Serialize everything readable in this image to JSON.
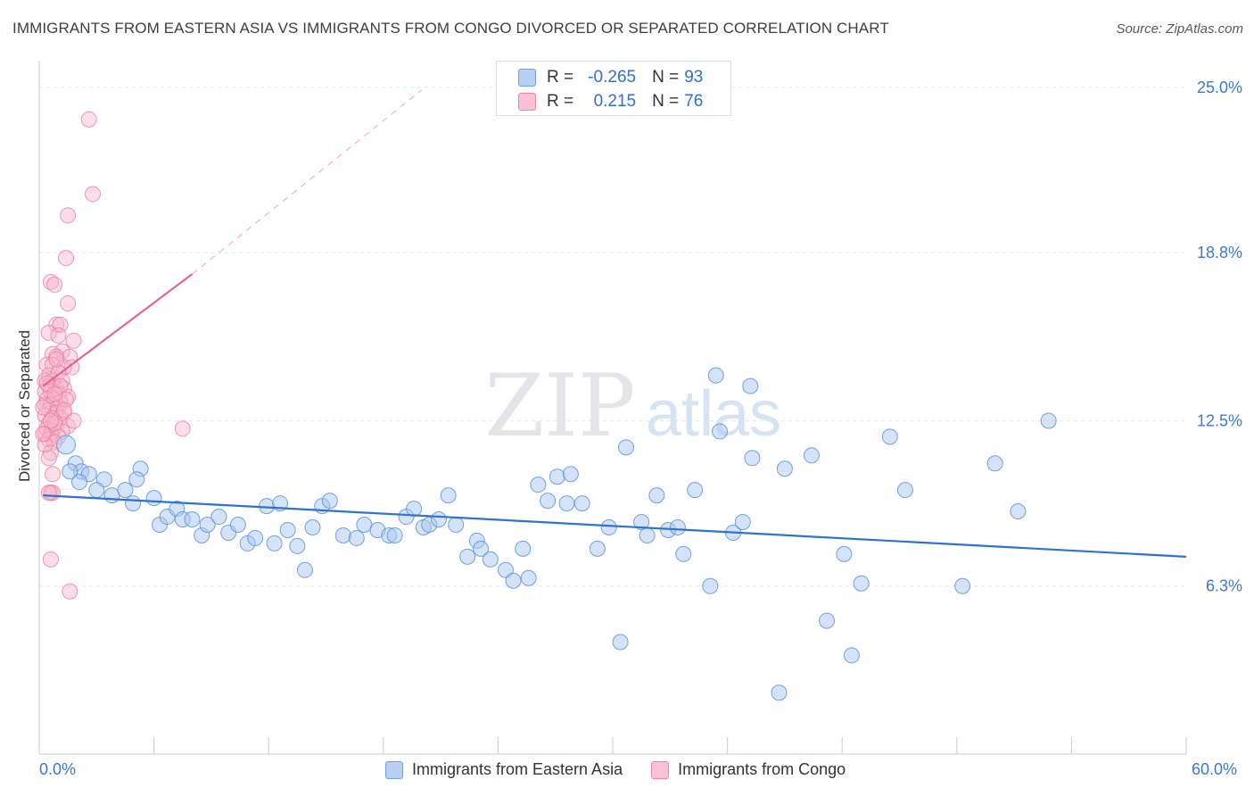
{
  "header": {
    "title": "IMMIGRANTS FROM EASTERN ASIA VS IMMIGRANTS FROM CONGO DIVORCED OR SEPARATED CORRELATION CHART",
    "source": "Source: ZipAtlas.com"
  },
  "legend": {
    "r_label": "R =",
    "n_label": "N =",
    "blue": {
      "r": "-0.265",
      "n": "93"
    },
    "pink": {
      "r": "0.215",
      "n": "76"
    }
  },
  "watermark": {
    "part1": "ZIP",
    "part2": "atlas"
  },
  "colors": {
    "blue_fill": "#a9c7f0",
    "blue_stroke": "#5b92dd",
    "blue_line": "#2f72d0",
    "pink_fill": "#f6b6cb",
    "pink_stroke": "#ea7da0",
    "pink_line": "#e2668f",
    "tick_label": "#3b78d4",
    "grid": "#e3e6ea"
  },
  "chart_data": {
    "type": "scatter",
    "title": "IMMIGRANTS FROM EASTERN ASIA VS IMMIGRANTS FROM CONGO DIVORCED OR SEPARATED CORRELATION CHART",
    "xlabel": "",
    "ylabel": "Divorced or Separated",
    "xlim": [
      0,
      60
    ],
    "ylim": [
      0,
      25.8
    ],
    "x_tick_labels": [
      "0.0%",
      "60.0%"
    ],
    "y_ticks": [
      6.3,
      12.5,
      18.8,
      25.0
    ],
    "y_tick_labels": [
      "6.3%",
      "12.5%",
      "18.8%",
      "25.0%"
    ],
    "grid": true,
    "legend_position": "top-center",
    "series": [
      {
        "name": "Immigrants from Eastern Asia",
        "color": "blue",
        "trend": {
          "x0": 0.2,
          "y0": 9.7,
          "x1": 60,
          "y1": 7.4
        },
        "points": [
          [
            1.4,
            11.6
          ],
          [
            1.9,
            10.9
          ],
          [
            2.2,
            10.6
          ],
          [
            2.6,
            10.5
          ],
          [
            3.4,
            10.3
          ],
          [
            3.0,
            9.9
          ],
          [
            3.8,
            9.7
          ],
          [
            4.5,
            9.9
          ],
          [
            4.9,
            9.4
          ],
          [
            5.3,
            10.7
          ],
          [
            5.1,
            10.3
          ],
          [
            6.0,
            9.6
          ],
          [
            6.3,
            8.6
          ],
          [
            6.7,
            8.9
          ],
          [
            7.2,
            9.2
          ],
          [
            7.5,
            8.8
          ],
          [
            8.0,
            8.8
          ],
          [
            8.5,
            8.2
          ],
          [
            8.8,
            8.6
          ],
          [
            9.4,
            8.9
          ],
          [
            9.9,
            8.3
          ],
          [
            10.4,
            8.6
          ],
          [
            10.9,
            7.9
          ],
          [
            11.3,
            8.1
          ],
          [
            11.9,
            9.3
          ],
          [
            12.3,
            7.9
          ],
          [
            12.6,
            9.4
          ],
          [
            13.0,
            8.4
          ],
          [
            13.5,
            7.8
          ],
          [
            13.9,
            6.9
          ],
          [
            14.3,
            8.5
          ],
          [
            14.8,
            9.3
          ],
          [
            15.2,
            9.5
          ],
          [
            15.9,
            8.2
          ],
          [
            16.6,
            8.1
          ],
          [
            17.0,
            8.6
          ],
          [
            17.7,
            8.4
          ],
          [
            18.3,
            8.2
          ],
          [
            18.6,
            8.2
          ],
          [
            19.2,
            8.9
          ],
          [
            19.6,
            9.2
          ],
          [
            20.1,
            8.5
          ],
          [
            20.4,
            8.6
          ],
          [
            20.9,
            8.8
          ],
          [
            21.4,
            9.7
          ],
          [
            21.8,
            8.6
          ],
          [
            22.4,
            7.4
          ],
          [
            22.9,
            8.0
          ],
          [
            23.1,
            7.7
          ],
          [
            23.6,
            7.3
          ],
          [
            24.4,
            6.9
          ],
          [
            24.8,
            6.5
          ],
          [
            25.3,
            7.7
          ],
          [
            25.6,
            6.6
          ],
          [
            26.1,
            10.1
          ],
          [
            26.6,
            9.5
          ],
          [
            27.1,
            10.4
          ],
          [
            27.6,
            9.4
          ],
          [
            27.8,
            10.5
          ],
          [
            28.4,
            9.4
          ],
          [
            29.2,
            7.7
          ],
          [
            29.8,
            8.5
          ],
          [
            30.4,
            4.2
          ],
          [
            30.7,
            11.5
          ],
          [
            31.5,
            8.7
          ],
          [
            31.8,
            8.2
          ],
          [
            32.3,
            9.7
          ],
          [
            32.9,
            8.4
          ],
          [
            33.4,
            8.5
          ],
          [
            33.7,
            7.5
          ],
          [
            34.3,
            9.9
          ],
          [
            35.1,
            6.3
          ],
          [
            35.4,
            14.2
          ],
          [
            35.6,
            12.1
          ],
          [
            36.3,
            8.3
          ],
          [
            36.8,
            8.7
          ],
          [
            37.2,
            13.8
          ],
          [
            37.3,
            11.1
          ],
          [
            38.7,
            2.3
          ],
          [
            39.0,
            10.7
          ],
          [
            40.4,
            11.2
          ],
          [
            41.2,
            5.0
          ],
          [
            42.1,
            7.5
          ],
          [
            42.5,
            3.7
          ],
          [
            43.0,
            6.4
          ],
          [
            45.3,
            9.9
          ],
          [
            48.3,
            6.3
          ],
          [
            50.0,
            10.9
          ],
          [
            51.2,
            9.1
          ],
          [
            52.8,
            12.5
          ],
          [
            1.6,
            10.6
          ],
          [
            2.1,
            10.2
          ],
          [
            44.5,
            11.9
          ]
        ]
      },
      {
        "name": "Immigrants from Congo",
        "color": "pink",
        "trend": {
          "x0": 0.2,
          "y0": 13.8,
          "x1": 8.0,
          "y1": 18.0,
          "dash_x1": 20.0,
          "dash_y1": 24.9
        },
        "points": [
          [
            2.6,
            23.8
          ],
          [
            2.8,
            21.0
          ],
          [
            1.5,
            20.2
          ],
          [
            1.4,
            18.6
          ],
          [
            0.6,
            17.7
          ],
          [
            0.8,
            17.6
          ],
          [
            1.5,
            16.9
          ],
          [
            0.9,
            16.1
          ],
          [
            1.1,
            16.1
          ],
          [
            0.5,
            15.8
          ],
          [
            1.0,
            15.7
          ],
          [
            1.8,
            15.5
          ],
          [
            1.2,
            15.1
          ],
          [
            0.7,
            15.0
          ],
          [
            0.9,
            14.9
          ],
          [
            1.6,
            14.9
          ],
          [
            0.4,
            14.6
          ],
          [
            0.7,
            14.6
          ],
          [
            1.3,
            14.5
          ],
          [
            1.7,
            14.5
          ],
          [
            0.5,
            14.2
          ],
          [
            1.0,
            14.3
          ],
          [
            0.3,
            14.0
          ],
          [
            0.7,
            14.0
          ],
          [
            1.2,
            14.0
          ],
          [
            0.5,
            13.8
          ],
          [
            0.9,
            13.7
          ],
          [
            1.3,
            13.7
          ],
          [
            0.3,
            13.6
          ],
          [
            0.6,
            13.6
          ],
          [
            1.0,
            13.5
          ],
          [
            1.5,
            13.4
          ],
          [
            0.4,
            13.3
          ],
          [
            0.8,
            13.3
          ],
          [
            1.1,
            13.2
          ],
          [
            0.3,
            13.1
          ],
          [
            0.6,
            13.1
          ],
          [
            1.0,
            13.0
          ],
          [
            0.5,
            12.9
          ],
          [
            0.9,
            12.8
          ],
          [
            1.3,
            12.8
          ],
          [
            0.3,
            12.7
          ],
          [
            0.7,
            12.6
          ],
          [
            1.1,
            12.6
          ],
          [
            0.5,
            12.4
          ],
          [
            0.9,
            12.3
          ],
          [
            1.5,
            12.3
          ],
          [
            0.4,
            12.2
          ],
          [
            0.7,
            12.1
          ],
          [
            1.2,
            12.1
          ],
          [
            0.3,
            12.0
          ],
          [
            0.6,
            12.0
          ],
          [
            1.0,
            11.9
          ],
          [
            0.5,
            11.8
          ],
          [
            0.8,
            11.7
          ],
          [
            0.3,
            11.6
          ],
          [
            0.6,
            11.3
          ],
          [
            0.7,
            10.5
          ],
          [
            0.6,
            9.8
          ],
          [
            0.7,
            9.8
          ],
          [
            0.5,
            9.8
          ],
          [
            0.6,
            7.3
          ],
          [
            1.6,
            6.1
          ],
          [
            7.5,
            12.2
          ],
          [
            0.8,
            12.4
          ],
          [
            1.1,
            13.8
          ],
          [
            0.4,
            13.9
          ],
          [
            0.9,
            14.8
          ],
          [
            1.4,
            13.3
          ],
          [
            0.6,
            12.5
          ],
          [
            0.2,
            13.0
          ],
          [
            0.2,
            12.0
          ],
          [
            1.8,
            12.5
          ],
          [
            0.5,
            11.1
          ],
          [
            1.3,
            12.9
          ],
          [
            0.8,
            13.5
          ]
        ]
      }
    ]
  },
  "axis": {
    "y_title": "Divorced or Separated",
    "x_min_label": "0.0%",
    "x_max_label": "60.0%"
  },
  "bottom_legend": {
    "blue_label": "Immigrants from Eastern Asia",
    "pink_label": "Immigrants from Congo"
  }
}
